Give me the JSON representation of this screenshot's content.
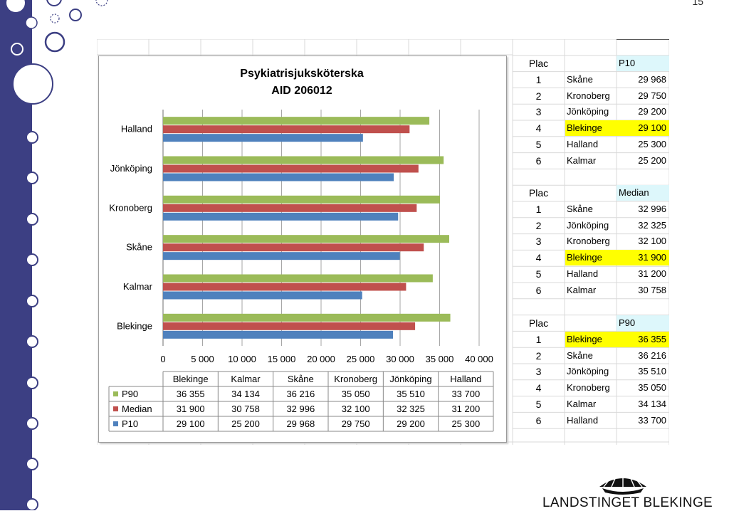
{
  "page_number": "15",
  "colors": {
    "sidebar": "#3c3f83",
    "p90": "#9bbb59",
    "median": "#c0504d",
    "p10": "#4f81bd",
    "highlight": "#ffff00",
    "header_fill": "#ddf7fb"
  },
  "icons": [
    "logo-emblem-icon"
  ],
  "chart_data": {
    "type": "bar",
    "orientation": "horizontal",
    "title_lines": [
      "Psykiatrisjuksköterska",
      "AID 206012"
    ],
    "categories": [
      "Blekinge",
      "Kalmar",
      "Skåne",
      "Kronoberg",
      "Jönköping",
      "Halland"
    ],
    "series": [
      {
        "name": "P90",
        "values": [
          36355,
          34134,
          36216,
          35050,
          35510,
          33700
        ]
      },
      {
        "name": "Median",
        "values": [
          31900,
          30758,
          32996,
          32100,
          32325,
          31200
        ]
      },
      {
        "name": "P10",
        "values": [
          29100,
          25200,
          29968,
          29750,
          29200,
          25300
        ]
      }
    ],
    "xlim": [
      0,
      40000
    ],
    "x_tick_labels": [
      "0",
      "5 000",
      "10 000",
      "15 000",
      "20 000",
      "25 000",
      "30 000",
      "35 000",
      "40 000"
    ],
    "table_cells": [
      [
        "36 355",
        "34 134",
        "36 216",
        "35 050",
        "35 510",
        "33 700"
      ],
      [
        "31 900",
        "30 758",
        "32 996",
        "32 100",
        "32 325",
        "31 200"
      ],
      [
        "29 100",
        "25 200",
        "29 968",
        "29 750",
        "29 200",
        "25 300"
      ]
    ],
    "grid": true
  },
  "tables": [
    {
      "rank_label": "Plac",
      "measure": "P10",
      "rows": [
        {
          "rank": "1",
          "name": "Skåne",
          "value": "29 968",
          "highlight": false
        },
        {
          "rank": "2",
          "name": "Kronoberg",
          "value": "29 750",
          "highlight": false
        },
        {
          "rank": "3",
          "name": "Jönköping",
          "value": "29 200",
          "highlight": false
        },
        {
          "rank": "4",
          "name": "Blekinge",
          "value": "29 100",
          "highlight": true
        },
        {
          "rank": "5",
          "name": "Halland",
          "value": "25 300",
          "highlight": false
        },
        {
          "rank": "6",
          "name": "Kalmar",
          "value": "25 200",
          "highlight": false
        }
      ]
    },
    {
      "rank_label": "Plac",
      "measure": "Median",
      "rows": [
        {
          "rank": "1",
          "name": "Skåne",
          "value": "32 996",
          "highlight": false
        },
        {
          "rank": "2",
          "name": "Jönköping",
          "value": "32 325",
          "highlight": false
        },
        {
          "rank": "3",
          "name": "Kronoberg",
          "value": "32 100",
          "highlight": false
        },
        {
          "rank": "4",
          "name": "Blekinge",
          "value": "31 900",
          "highlight": true
        },
        {
          "rank": "5",
          "name": "Halland",
          "value": "31 200",
          "highlight": false
        },
        {
          "rank": "6",
          "name": "Kalmar",
          "value": "30 758",
          "highlight": false
        }
      ]
    },
    {
      "rank_label": "Plac",
      "measure": "P90",
      "rows": [
        {
          "rank": "1",
          "name": "Blekinge",
          "value": "36 355",
          "highlight": true
        },
        {
          "rank": "2",
          "name": "Skåne",
          "value": "36 216",
          "highlight": false
        },
        {
          "rank": "3",
          "name": "Jönköping",
          "value": "35 510",
          "highlight": false
        },
        {
          "rank": "4",
          "name": "Kronoberg",
          "value": "35 050",
          "highlight": false
        },
        {
          "rank": "5",
          "name": "Kalmar",
          "value": "34 134",
          "highlight": false
        },
        {
          "rank": "6",
          "name": "Halland",
          "value": "33 700",
          "highlight": false
        }
      ]
    }
  ],
  "logo_text": "LANDSTINGET BLEKINGE"
}
